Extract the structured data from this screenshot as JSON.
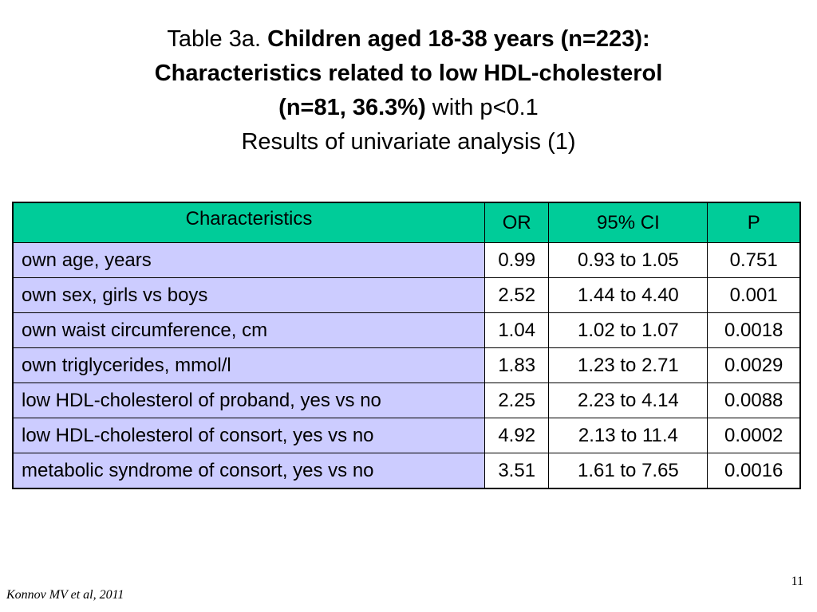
{
  "title": {
    "prefix": "Table 3a. ",
    "bold_line1": "Children aged 18-38 years (n=223):",
    "bold_line2": "Characteristics related to low HDL-cholesterol",
    "bold_line3": "(n=81, 36.3%)",
    "line3_suffix": " with p<0.1",
    "line4": "Results of univariate analysis (1)"
  },
  "table": {
    "headers": {
      "characteristics": "Characteristics",
      "or": "OR",
      "ci": "95% CI",
      "p": "P"
    },
    "rows": [
      {
        "characteristic": "own age, years",
        "or": "0.99",
        "ci": "0.93 to 1.05",
        "p": "0.751"
      },
      {
        "characteristic": "own sex, girls vs boys",
        "or": "2.52",
        "ci": "1.44 to 4.40",
        "p": "0.001"
      },
      {
        "characteristic": "own waist circumference, cm",
        "or": "1.04",
        "ci": "1.02 to 1.07",
        "p": "0.0018"
      },
      {
        "characteristic": "own triglycerides, mmol/l",
        "or": "1.83",
        "ci": "1.23 to 2.71",
        "p": "0.0029"
      },
      {
        "characteristic": "low HDL-cholesterol of proband, yes vs no",
        "or": "2.25",
        "ci": "2.23 to 4.14",
        "p": "0.0088"
      },
      {
        "characteristic": "low HDL-cholesterol of consort, yes vs no",
        "or": "4.92",
        "ci": "2.13 to 11.4",
        "p": "0.0002"
      },
      {
        "characteristic": "metabolic syndrome of consort, yes vs no",
        "or": "3.51",
        "ci": "1.61 to 7.65",
        "p": "0.0016"
      }
    ]
  },
  "footer": {
    "page_number": "11",
    "citation": "Konnov MV et al, 2011"
  },
  "colors": {
    "header_bg": "#00cc99",
    "characteristic_cell_bg": "#ccccff",
    "value_cell_bg": "#ffffff"
  }
}
